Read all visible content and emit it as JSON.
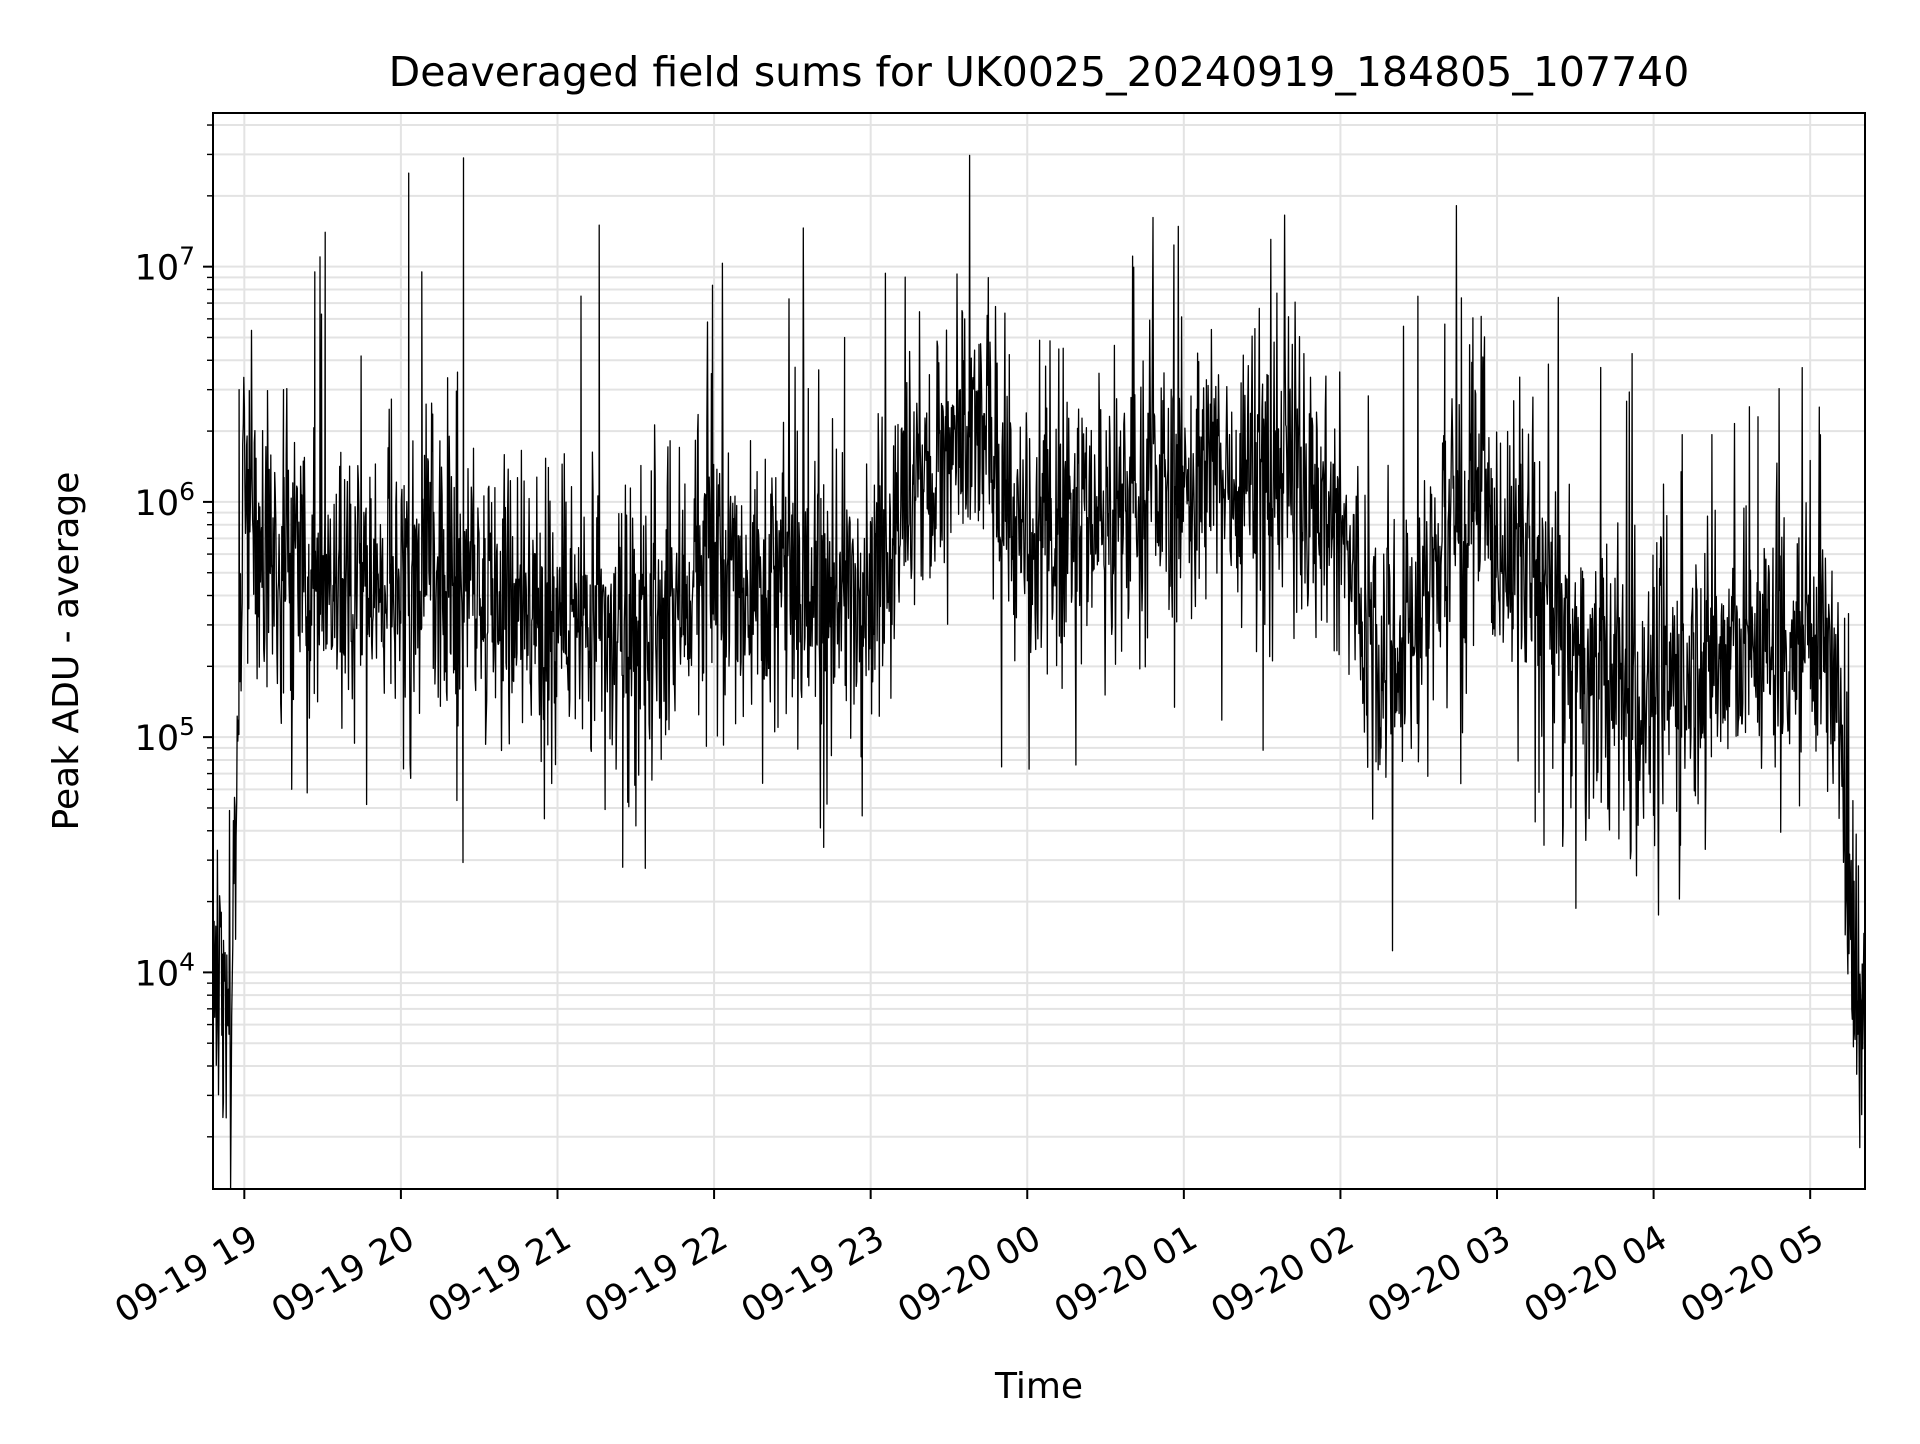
{
  "chart_data": {
    "type": "line",
    "title": "Deaveraged field sums for UK0025_20240919_184805_107740",
    "xlabel": "Time",
    "ylabel": "Peak ADU - average",
    "yscale": "log",
    "xlim": [
      "2024-09-19 18:48",
      "2024-09-20 05:21"
    ],
    "ylim": [
      1200,
      45000000
    ],
    "grid": true,
    "x_tick_labels": [
      "09-19 19",
      "09-19 20",
      "09-19 21",
      "09-19 22",
      "09-19 23",
      "09-20 00",
      "09-20 01",
      "09-20 02",
      "09-20 03",
      "09-20 04",
      "09-20 05"
    ],
    "y_tick_labels": [
      {
        "value": 10000,
        "base": "10",
        "exp": "4"
      },
      {
        "value": 100000,
        "base": "10",
        "exp": "5"
      },
      {
        "value": 1000000,
        "base": "10",
        "exp": "6"
      },
      {
        "value": 10000000,
        "base": "10",
        "exp": "7"
      }
    ],
    "line_color": "#000000",
    "series": [
      {
        "x": [
          "2024-09-19 18:48",
          "2024-09-19 18:50",
          "2024-09-19 18:52",
          "2024-09-19 18:53",
          "2024-09-19 18:55",
          "2024-09-19 18:56",
          "2024-09-19 18:58",
          "2024-09-19 19:00",
          "2024-09-19 19:02",
          "2024-09-19 19:04",
          "2024-09-19 19:06",
          "2024-09-19 19:10",
          "2024-09-19 19:15",
          "2024-09-19 19:20",
          "2024-09-19 19:25",
          "2024-09-19 19:30",
          "2024-09-19 19:40",
          "2024-09-19 19:50",
          "2024-09-19 20:00",
          "2024-09-19 20:15",
          "2024-09-19 20:30",
          "2024-09-19 20:45",
          "2024-09-19 21:00",
          "2024-09-19 21:10",
          "2024-09-19 21:20",
          "2024-09-19 21:30",
          "2024-09-19 21:40",
          "2024-09-19 21:50",
          "2024-09-19 22:00",
          "2024-09-19 22:15",
          "2024-09-19 22:30",
          "2024-09-19 22:45",
          "2024-09-19 23:00",
          "2024-09-19 23:15",
          "2024-09-19 23:30",
          "2024-09-19 23:45",
          "2024-09-20 00:00",
          "2024-09-20 00:15",
          "2024-09-20 00:30",
          "2024-09-20 00:45",
          "2024-09-20 01:00",
          "2024-09-20 01:15",
          "2024-09-20 01:30",
          "2024-09-20 01:45",
          "2024-09-20 02:00",
          "2024-09-20 02:10",
          "2024-09-20 02:20",
          "2024-09-20 02:30",
          "2024-09-20 02:40",
          "2024-09-20 02:50",
          "2024-09-20 03:00",
          "2024-09-20 03:15",
          "2024-09-20 03:30",
          "2024-09-20 03:45",
          "2024-09-20 04:00",
          "2024-09-20 04:15",
          "2024-09-20 04:30",
          "2024-09-20 04:45",
          "2024-09-20 05:00",
          "2024-09-20 05:05",
          "2024-09-20 05:10",
          "2024-09-20 05:14",
          "2024-09-20 05:17",
          "2024-09-20 05:21"
        ],
        "y": [
          8000,
          11000,
          9000,
          7000,
          6000,
          30000,
          300000,
          1000000,
          900000,
          650000,
          500000,
          430000,
          500000,
          550000,
          500000,
          480000,
          420000,
          420000,
          450000,
          500000,
          480000,
          400000,
          330000,
          300000,
          250000,
          230000,
          300000,
          450000,
          500000,
          480000,
          420000,
          380000,
          500000,
          1000000,
          1500000,
          2000000,
          500000,
          1000000,
          900000,
          1100000,
          1200000,
          1300000,
          1500000,
          1500000,
          700000,
          300000,
          250000,
          300000,
          800000,
          900000,
          700000,
          500000,
          200000,
          150000,
          160000,
          200000,
          220000,
          250000,
          300000,
          280000,
          150000,
          30000,
          10000,
          7000
        ],
        "jitter": 0.5
      }
    ],
    "spikes": [
      {
        "x": "2024-09-19 18:58",
        "y": 3000000
      },
      {
        "x": "2024-09-19 19:15",
        "y": 3000000
      },
      {
        "x": "2024-09-19 19:27",
        "y": 9500000
      },
      {
        "x": "2024-09-19 19:29",
        "y": 11000000
      },
      {
        "x": "2024-09-19 19:31",
        "y": 14000000
      },
      {
        "x": "2024-09-19 20:03",
        "y": 25000000
      },
      {
        "x": "2024-09-19 20:08",
        "y": 9500000
      },
      {
        "x": "2024-09-19 20:24",
        "y": 29000000
      },
      {
        "x": "2024-09-19 21:09",
        "y": 7500000
      },
      {
        "x": "2024-09-19 21:16",
        "y": 15000000
      },
      {
        "x": "2024-09-19 22:50",
        "y": 5000000
      },
      {
        "x": "2024-09-19 23:35",
        "y": 6500000
      },
      {
        "x": "2024-09-20 02:40",
        "y": 5700000
      },
      {
        "x": "2024-09-20 04:40",
        "y": 2300000
      },
      {
        "x": "2024-09-20 05:00",
        "y": 1500000
      }
    ],
    "dips": [
      {
        "x": "2024-09-19 18:52",
        "y": 2800
      },
      {
        "x": "2024-09-19 20:55",
        "y": 45000
      },
      {
        "x": "2024-09-19 21:25",
        "y": 28000
      },
      {
        "x": "2024-09-19 22:42",
        "y": 34000
      },
      {
        "x": "2024-09-20 05:19",
        "y": 1800
      }
    ]
  }
}
